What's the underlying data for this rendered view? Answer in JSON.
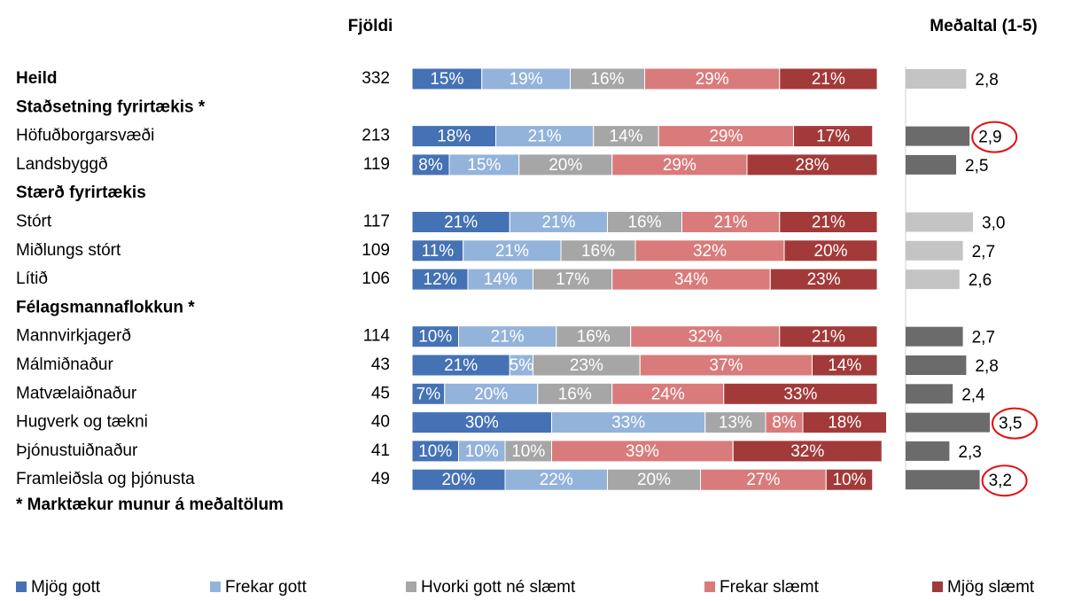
{
  "chart_data": {
    "type": "stacked-bar",
    "count_header": "Fjöldi",
    "mean_header": "Meðaltal (1-5)",
    "footnote": "* Marktækur munur á meðaltölum",
    "xlim": [
      0,
      100
    ],
    "mean_lim": [
      1,
      5
    ],
    "series": [
      {
        "name": "Mjög gott",
        "color": "#4472b4"
      },
      {
        "name": "Frekar gott",
        "color": "#93b3da"
      },
      {
        "name": "Hvorki gott né slæmt",
        "color": "#a6a6a6"
      },
      {
        "name": "Frekar slæmt",
        "color": "#d97b7b"
      },
      {
        "name": "Mjög slæmt",
        "color": "#a33a3a"
      }
    ],
    "rows": [
      {
        "label": "Heild",
        "bold": true,
        "count": 332,
        "values": [
          15,
          19,
          16,
          29,
          21
        ],
        "value_labels": [
          "15%",
          "19%",
          "16%",
          "29%",
          "21%"
        ],
        "mean": 2.8,
        "mean_label": "2,8",
        "mean_color": "#c4c4c4",
        "circled": false
      },
      {
        "label": "Staðsetning fyrirtækis *",
        "bold": true
      },
      {
        "label": "Höfuðborgarsvæði",
        "count": 213,
        "values": [
          18,
          21,
          14,
          29,
          17
        ],
        "value_labels": [
          "18%",
          "21%",
          "14%",
          "29%",
          "17%"
        ],
        "mean": 2.9,
        "mean_label": "2,9",
        "mean_color": "#6b6b6b",
        "circled": true
      },
      {
        "label": "Landsbyggð",
        "count": 119,
        "values": [
          8,
          15,
          20,
          29,
          28
        ],
        "value_labels": [
          "8%",
          "15%",
          "20%",
          "29%",
          "28%"
        ],
        "mean": 2.5,
        "mean_label": "2,5",
        "mean_color": "#6b6b6b",
        "circled": false
      },
      {
        "label": "Stærð fyrirtækis",
        "bold": true
      },
      {
        "label": "Stórt",
        "count": 117,
        "values": [
          21,
          21,
          16,
          21,
          21
        ],
        "value_labels": [
          "21%",
          "21%",
          "16%",
          "21%",
          "21%"
        ],
        "mean": 3.0,
        "mean_label": "3,0",
        "mean_color": "#c4c4c4",
        "circled": false
      },
      {
        "label": "Miðlungs stórt",
        "count": 109,
        "values": [
          11,
          21,
          16,
          32,
          20
        ],
        "value_labels": [
          "11%",
          "21%",
          "16%",
          "32%",
          "20%"
        ],
        "mean": 2.7,
        "mean_label": "2,7",
        "mean_color": "#c4c4c4",
        "circled": false
      },
      {
        "label": "Lítið",
        "count": 106,
        "values": [
          12,
          14,
          17,
          34,
          23
        ],
        "value_labels": [
          "12%",
          "14%",
          "17%",
          "34%",
          "23%"
        ],
        "mean": 2.6,
        "mean_label": "2,6",
        "mean_color": "#c4c4c4",
        "circled": false
      },
      {
        "label": "Félagsmannaflokkun *",
        "bold": true
      },
      {
        "label": "Mannvirkjagerð",
        "count": 114,
        "values": [
          10,
          21,
          16,
          32,
          21
        ],
        "value_labels": [
          "10%",
          "21%",
          "16%",
          "32%",
          "21%"
        ],
        "mean": 2.7,
        "mean_label": "2,7",
        "mean_color": "#6b6b6b",
        "circled": false
      },
      {
        "label": "Málmiðnaður",
        "count": 43,
        "values": [
          21,
          5,
          23,
          37,
          14
        ],
        "value_labels": [
          "21%",
          "5%",
          "23%",
          "37%",
          "14%"
        ],
        "mean": 2.8,
        "mean_label": "2,8",
        "mean_color": "#6b6b6b",
        "circled": false
      },
      {
        "label": "Matvælaiðnaður",
        "count": 45,
        "values": [
          7,
          20,
          16,
          24,
          33
        ],
        "value_labels": [
          "7%",
          "20%",
          "16%",
          "24%",
          "33%"
        ],
        "mean": 2.4,
        "mean_label": "2,4",
        "mean_color": "#6b6b6b",
        "circled": false
      },
      {
        "label": "Hugverk og tækni",
        "count": 40,
        "values": [
          30,
          33,
          13,
          8,
          18
        ],
        "value_labels": [
          "30%",
          "33%",
          "13%",
          "8%",
          "18%"
        ],
        "mean": 3.5,
        "mean_label": "3,5",
        "mean_color": "#6b6b6b",
        "circled": true
      },
      {
        "label": "Þjónustuiðnaður",
        "count": 41,
        "values": [
          10,
          10,
          10,
          39,
          32
        ],
        "value_labels": [
          "10%",
          "10%",
          "10%",
          "39%",
          "32%"
        ],
        "mean": 2.3,
        "mean_label": "2,3",
        "mean_color": "#6b6b6b",
        "circled": false
      },
      {
        "label": "Framleiðsla og þjónusta",
        "count": 49,
        "values": [
          20,
          22,
          20,
          27,
          10
        ],
        "value_labels": [
          "20%",
          "22%",
          "20%",
          "27%",
          "10%"
        ],
        "mean": 3.2,
        "mean_label": "3,2",
        "mean_color": "#6b6b6b",
        "circled": true
      }
    ]
  }
}
